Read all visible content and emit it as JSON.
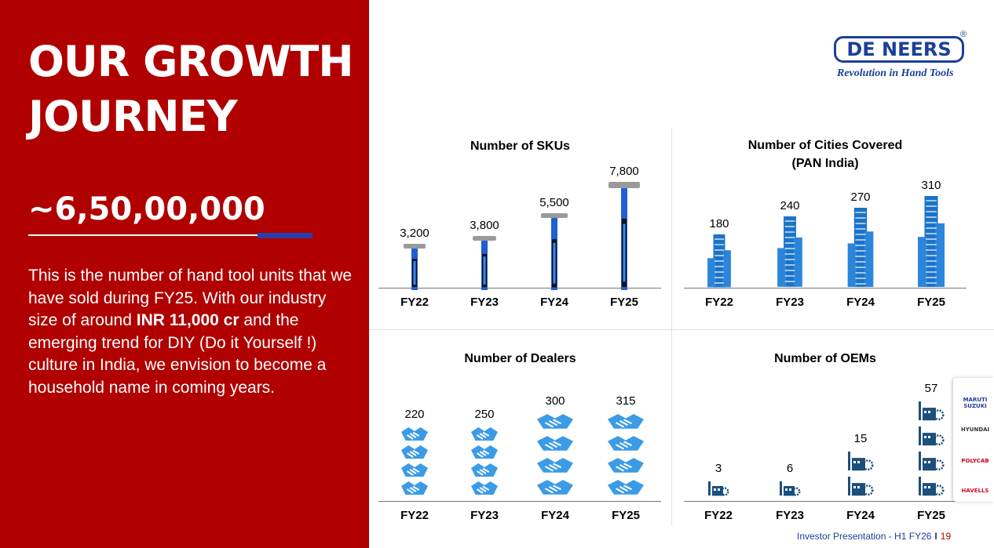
{
  "left_panel": {
    "title_line1": "OUR GROWTH",
    "title_line2": "JOURNEY",
    "headline_number": "~6,50,00,000",
    "para_1": "This is the number of hand tool units that we have sold during FY25. With our industry size of around ",
    "para_bold": "INR 11,000 cr",
    "para_2": " and the emerging trend for DIY (Do it Yourself !) culture in India, we envision to become a household name in coming years.",
    "background_color": "#b00000",
    "accent_color": "#2b3fa8"
  },
  "logo": {
    "brand": "DE NEERS",
    "registered": "®",
    "tagline": "Revolution in Hand Tools",
    "color": "#1b3f9c"
  },
  "oem_brands": [
    "MARUTI SUZUKI",
    "HYUNDAI",
    "POLYCAB",
    "HAVELLS"
  ],
  "footer": {
    "text": "Investor Presentation - H1 FY26",
    "separator": "I",
    "page": "19"
  },
  "chart_data": [
    {
      "type": "bar",
      "title": "Number of SKUs",
      "categories": [
        "FY22",
        "FY23",
        "FY24",
        "FY25"
      ],
      "values": [
        3200,
        3800,
        5500,
        7800
      ],
      "value_labels": [
        "3,200",
        "3,800",
        "5,500",
        "7,800"
      ],
      "mark_icon": "hammer-icon",
      "ylim": [
        0,
        7800
      ]
    },
    {
      "type": "bar",
      "title_line1": "Number of Cities Covered",
      "title_line2": "(PAN India)",
      "categories": [
        "FY22",
        "FY23",
        "FY24",
        "FY25"
      ],
      "values": [
        180,
        240,
        270,
        310
      ],
      "value_labels": [
        "180",
        "240",
        "270",
        "310"
      ],
      "mark_icon": "building-icon",
      "ylim": [
        0,
        310
      ]
    },
    {
      "type": "bar",
      "title": "Number of Dealers",
      "categories": [
        "FY22",
        "FY23",
        "FY24",
        "FY25"
      ],
      "values": [
        220,
        250,
        300,
        315
      ],
      "value_labels": [
        "220",
        "250",
        "300",
        "315"
      ],
      "icon_counts": [
        4,
        4,
        4,
        4
      ],
      "mark_icon": "handshake-icon"
    },
    {
      "type": "bar",
      "title": "Number of OEMs",
      "categories": [
        "FY22",
        "FY23",
        "FY24",
        "FY25"
      ],
      "values": [
        3,
        6,
        15,
        57
      ],
      "value_labels": [
        "3",
        "6",
        "15",
        "57"
      ],
      "icon_counts": [
        1,
        1,
        2,
        4
      ],
      "mark_icon": "factory-icon"
    }
  ]
}
